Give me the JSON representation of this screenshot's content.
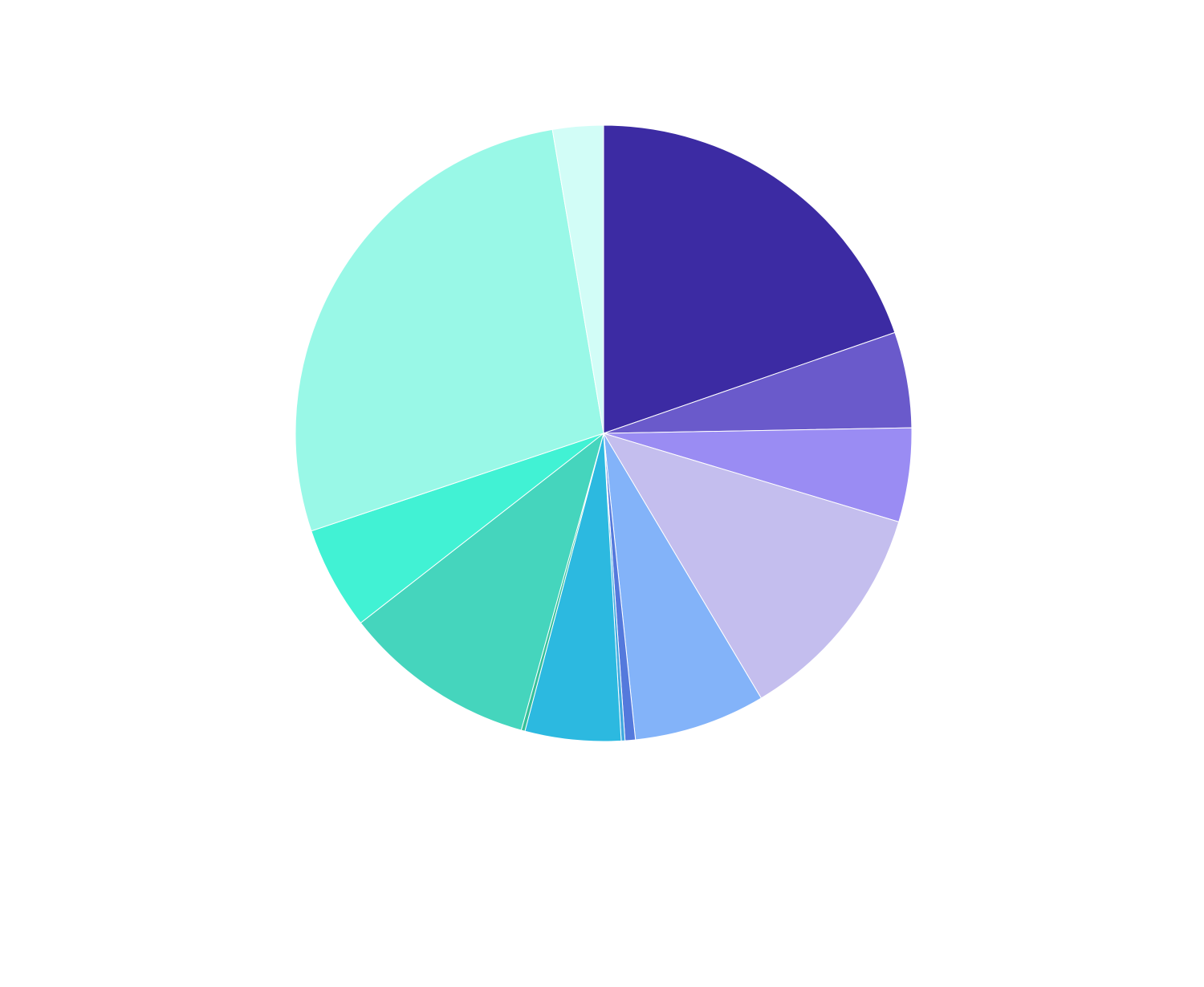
{
  "chart_data": {
    "type": "pie",
    "start_angle": "12-o'clock",
    "direction": "clockwise",
    "legend": "none",
    "slices": [
      {
        "value": 20.0,
        "color": "#3C2BA3"
      },
      {
        "value": 5.1,
        "color": "#6A5ACB"
      },
      {
        "value": 5.0,
        "color": "#9A8CF3"
      },
      {
        "value": 12.0,
        "color": "#C4BEEE"
      },
      {
        "value": 7.0,
        "color": "#83B3F9"
      },
      {
        "value": 0.55,
        "color": "#5479DC"
      },
      {
        "value": 0.2,
        "color": "#3FA8E0"
      },
      {
        "value": 5.1,
        "color": "#2CB9E0"
      },
      {
        "value": 0.2,
        "color": "#35C09A"
      },
      {
        "value": 10.3,
        "color": "#45D5BD"
      },
      {
        "value": 5.5,
        "color": "#41F2D4"
      },
      {
        "value": 27.9,
        "color": "#99F8E7"
      },
      {
        "value": 2.7,
        "color": "#D2FDF7"
      }
    ]
  }
}
